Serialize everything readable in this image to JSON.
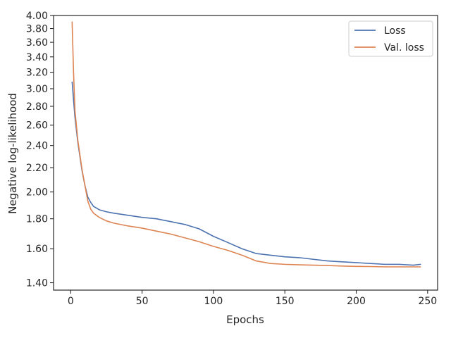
{
  "chart_data": {
    "type": "line",
    "title": "",
    "xlabel": "Epochs",
    "ylabel": "Negative log-likelihood",
    "y_scale": "log",
    "xlim": [
      -12,
      257
    ],
    "ylim": [
      1.36,
      4.0
    ],
    "x_ticks": [
      0,
      50,
      100,
      150,
      200,
      250
    ],
    "x_tick_labels": [
      "0",
      "50",
      "100",
      "150",
      "200",
      "250"
    ],
    "y_ticks": [
      1.4,
      1.6,
      1.8,
      2.0,
      2.2,
      2.4,
      2.6,
      2.8,
      3.0,
      3.2,
      3.4,
      3.6,
      3.8,
      4.0
    ],
    "y_tick_labels": [
      "1.40",
      "1.60",
      "1.80",
      "2.00",
      "2.20",
      "2.40",
      "2.60",
      "2.80",
      "3.00",
      "3.20",
      "3.40",
      "3.60",
      "3.80",
      "4.00"
    ],
    "grid": false,
    "legend": {
      "position": "top-right",
      "entries": [
        "Loss",
        "Val. loss"
      ]
    },
    "series": [
      {
        "name": "Loss",
        "color": "#4c72b0",
        "x": [
          1,
          3,
          5,
          8,
          10,
          12,
          14,
          16,
          20,
          25,
          30,
          40,
          50,
          55,
          60,
          70,
          80,
          90,
          100,
          110,
          120,
          130,
          140,
          150,
          160,
          170,
          180,
          190,
          200,
          210,
          220,
          230,
          240,
          245
        ],
        "y": [
          3.08,
          2.68,
          2.43,
          2.17,
          2.05,
          1.96,
          1.92,
          1.89,
          1.865,
          1.85,
          1.84,
          1.825,
          1.81,
          1.805,
          1.8,
          1.78,
          1.76,
          1.73,
          1.68,
          1.64,
          1.6,
          1.57,
          1.56,
          1.55,
          1.545,
          1.535,
          1.525,
          1.52,
          1.515,
          1.51,
          1.505,
          1.505,
          1.5,
          1.505
        ]
      },
      {
        "name": "Val. loss",
        "color": "#dd8452",
        "x": [
          1,
          2,
          3,
          5,
          8,
          10,
          12,
          14,
          16,
          20,
          25,
          30,
          40,
          50,
          60,
          70,
          80,
          90,
          100,
          110,
          120,
          130,
          140,
          150,
          160,
          170,
          180,
          190,
          200,
          210,
          220,
          230,
          240,
          245
        ],
        "y": [
          3.9,
          3.2,
          2.75,
          2.45,
          2.18,
          2.05,
          1.93,
          1.87,
          1.84,
          1.81,
          1.785,
          1.77,
          1.75,
          1.735,
          1.715,
          1.695,
          1.67,
          1.645,
          1.615,
          1.59,
          1.56,
          1.525,
          1.51,
          1.505,
          1.502,
          1.5,
          1.498,
          1.495,
          1.493,
          1.492,
          1.49,
          1.49,
          1.49,
          1.49
        ]
      }
    ]
  }
}
